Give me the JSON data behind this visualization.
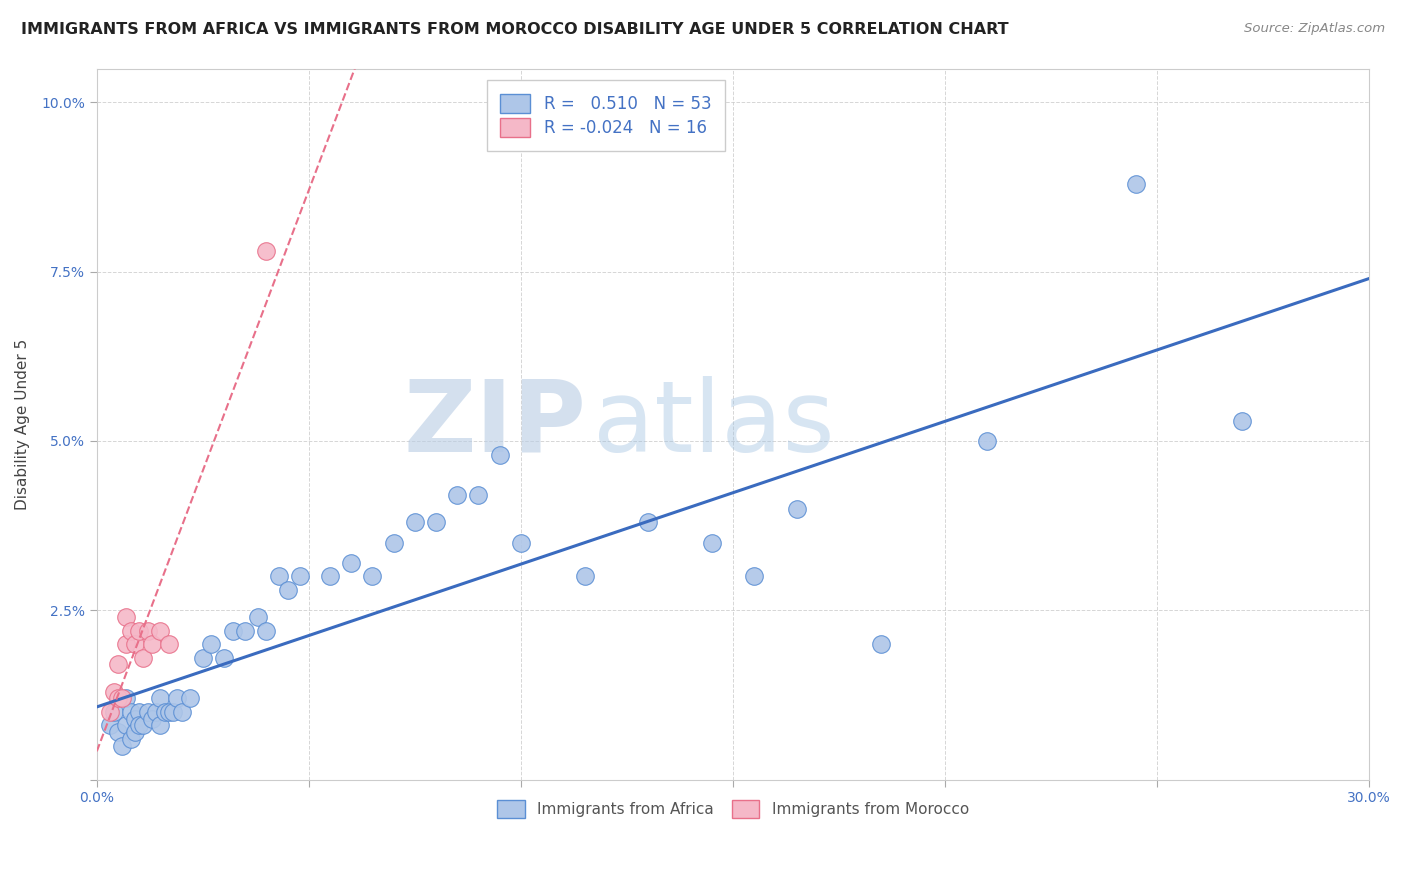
{
  "title": "IMMIGRANTS FROM AFRICA VS IMMIGRANTS FROM MOROCCO DISABILITY AGE UNDER 5 CORRELATION CHART",
  "source": "Source: ZipAtlas.com",
  "ylabel": "Disability Age Under 5",
  "xlim": [
    0.0,
    0.3
  ],
  "ylim": [
    0.0,
    0.105
  ],
  "xticks": [
    0.0,
    0.05,
    0.1,
    0.15,
    0.2,
    0.25,
    0.3
  ],
  "yticks": [
    0.0,
    0.025,
    0.05,
    0.075,
    0.1
  ],
  "legend1_label": "R =   0.510   N = 53",
  "legend2_label": "R = -0.024   N = 16",
  "africa_color": "#aec6e8",
  "africa_edge_color": "#5b8fd4",
  "morocco_color": "#f5b8c8",
  "morocco_edge_color": "#e8708a",
  "africa_line_color": "#3a6bbf",
  "morocco_line_color": "#e8708a",
  "africa_scatter_x": [
    0.003,
    0.004,
    0.005,
    0.006,
    0.007,
    0.007,
    0.008,
    0.008,
    0.009,
    0.009,
    0.01,
    0.01,
    0.011,
    0.012,
    0.013,
    0.014,
    0.015,
    0.015,
    0.016,
    0.017,
    0.018,
    0.019,
    0.02,
    0.022,
    0.025,
    0.027,
    0.03,
    0.032,
    0.035,
    0.038,
    0.04,
    0.043,
    0.045,
    0.048,
    0.055,
    0.06,
    0.065,
    0.07,
    0.075,
    0.08,
    0.085,
    0.09,
    0.095,
    0.1,
    0.115,
    0.13,
    0.145,
    0.155,
    0.165,
    0.185,
    0.21,
    0.245,
    0.27
  ],
  "africa_scatter_y": [
    0.008,
    0.01,
    0.007,
    0.005,
    0.012,
    0.008,
    0.01,
    0.006,
    0.009,
    0.007,
    0.01,
    0.008,
    0.008,
    0.01,
    0.009,
    0.01,
    0.012,
    0.008,
    0.01,
    0.01,
    0.01,
    0.012,
    0.01,
    0.012,
    0.018,
    0.02,
    0.018,
    0.022,
    0.022,
    0.024,
    0.022,
    0.03,
    0.028,
    0.03,
    0.03,
    0.032,
    0.03,
    0.035,
    0.038,
    0.038,
    0.042,
    0.042,
    0.048,
    0.035,
    0.03,
    0.038,
    0.035,
    0.03,
    0.04,
    0.02,
    0.05,
    0.088,
    0.053
  ],
  "morocco_scatter_x": [
    0.003,
    0.004,
    0.005,
    0.005,
    0.006,
    0.007,
    0.007,
    0.008,
    0.009,
    0.01,
    0.011,
    0.012,
    0.013,
    0.015,
    0.017,
    0.04
  ],
  "morocco_scatter_y": [
    0.01,
    0.013,
    0.012,
    0.017,
    0.012,
    0.02,
    0.024,
    0.022,
    0.02,
    0.022,
    0.018,
    0.022,
    0.02,
    0.022,
    0.02,
    0.078
  ],
  "watermark_zip": "ZIP",
  "watermark_atlas": "atlas",
  "background_color": "#ffffff",
  "grid_color": "#cccccc",
  "text_color": "#4472c4",
  "label_color": "#555555",
  "title_color": "#222222"
}
